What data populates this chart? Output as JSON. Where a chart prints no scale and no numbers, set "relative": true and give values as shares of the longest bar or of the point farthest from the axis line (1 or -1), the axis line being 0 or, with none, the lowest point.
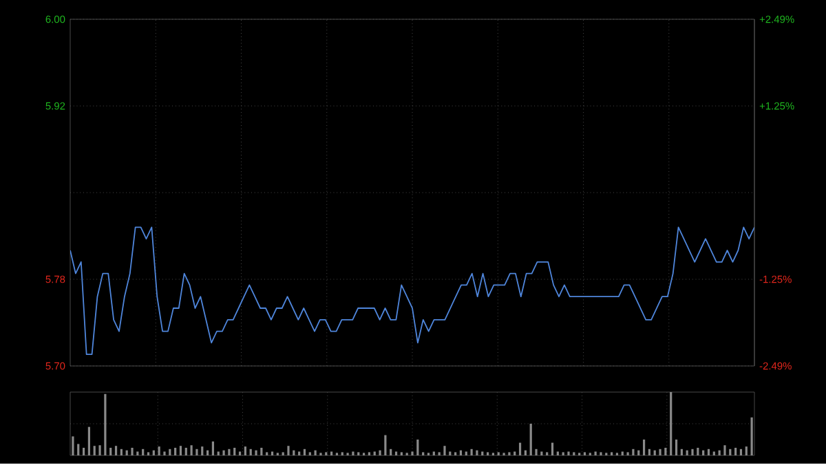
{
  "chart_data": [
    {
      "type": "line",
      "color": "#4f86dc",
      "marker": "none",
      "line_style": "solid",
      "grid": true,
      "tick_labels": "y",
      "categories": [
        null,
        null,
        null,
        null,
        null,
        null,
        null,
        null,
        null,
        null,
        null,
        null,
        null,
        null,
        null,
        null,
        null,
        null,
        null,
        null,
        null,
        null,
        null,
        null,
        null,
        null,
        null,
        null,
        null,
        null,
        null,
        null,
        null,
        null,
        null,
        null,
        null,
        null,
        null,
        null,
        null,
        null,
        null,
        null,
        null,
        null,
        null,
        null,
        null,
        null,
        null,
        null,
        null,
        null,
        null,
        null,
        null,
        null,
        null,
        null,
        null,
        null,
        null,
        null,
        null,
        null,
        null,
        null,
        null,
        null,
        null,
        null,
        null,
        null,
        null,
        null,
        null,
        null,
        null,
        null,
        null,
        null,
        null,
        null,
        null,
        null,
        null,
        null,
        null,
        null,
        null,
        null,
        null,
        null,
        null,
        null,
        null,
        null,
        null,
        null,
        null,
        null,
        null,
        null,
        null,
        null,
        null,
        null,
        null,
        null,
        null,
        null,
        null,
        null,
        null,
        null,
        null,
        null,
        null,
        null,
        null,
        null,
        null,
        null,
        null,
        null,
        null
      ],
      "values": [
        5.8,
        5.78,
        5.79,
        5.71,
        5.71,
        5.76,
        5.78,
        5.78,
        5.74,
        5.73,
        5.76,
        5.78,
        5.82,
        5.82,
        5.81,
        5.82,
        5.76,
        5.73,
        5.73,
        5.75,
        5.75,
        5.78,
        5.77,
        5.75,
        5.76,
        5.74,
        5.72,
        5.73,
        5.73,
        5.74,
        5.74,
        5.75,
        5.76,
        5.77,
        5.76,
        5.75,
        5.75,
        5.74,
        5.75,
        5.75,
        5.76,
        5.75,
        5.74,
        5.75,
        5.74,
        5.73,
        5.74,
        5.74,
        5.73,
        5.73,
        5.74,
        5.74,
        5.74,
        5.75,
        5.75,
        5.75,
        5.75,
        5.74,
        5.75,
        5.74,
        5.74,
        5.77,
        5.76,
        5.75,
        5.72,
        5.74,
        5.73,
        5.74,
        5.74,
        5.74,
        5.75,
        5.76,
        5.77,
        5.77,
        5.78,
        5.76,
        5.78,
        5.76,
        5.77,
        5.77,
        5.77,
        5.78,
        5.78,
        5.76,
        5.78,
        5.78,
        5.79,
        5.79,
        5.79,
        5.77,
        5.76,
        5.77,
        5.76,
        5.76,
        5.76,
        5.76,
        5.76,
        5.76,
        5.76,
        5.76,
        5.76,
        5.76,
        5.77,
        5.77,
        5.76,
        5.75,
        5.74,
        5.74,
        5.75,
        5.76,
        5.76,
        5.78,
        5.82,
        5.81,
        5.8,
        5.79,
        5.8,
        5.81,
        5.8,
        5.79,
        5.79,
        5.8,
        5.79,
        5.8,
        5.82,
        5.81,
        5.82
      ],
      "ylim": [
        5.7,
        6.0
      ],
      "yticks": [
        {
          "value": 5.7,
          "label": "5.70"
        },
        {
          "value": 5.775,
          "label": "5.78"
        },
        {
          "value": 5.85,
          "label": null
        },
        {
          "value": 5.925,
          "label": "5.92"
        },
        {
          "value": 6.0,
          "label": "6.00"
        }
      ],
      "y2lim": [
        -2.49,
        2.49
      ],
      "y2ticks": [
        {
          "value": -2.49,
          "label": "-2.49%"
        },
        {
          "value": -1.245,
          "label": "-1.25%"
        },
        {
          "value": 1.245,
          "label": "+1.25%"
        },
        {
          "value": 2.49,
          "label": "+2.49%"
        }
      ]
    },
    {
      "type": "bar",
      "relative": true,
      "color": "#8a8a8a",
      "grid": true,
      "tick_labels": false,
      "categories": [
        null,
        null,
        null,
        null,
        null,
        null,
        null,
        null,
        null,
        null,
        null,
        null,
        null,
        null,
        null,
        null,
        null,
        null,
        null,
        null,
        null,
        null,
        null,
        null,
        null,
        null,
        null,
        null,
        null,
        null,
        null,
        null,
        null,
        null,
        null,
        null,
        null,
        null,
        null,
        null,
        null,
        null,
        null,
        null,
        null,
        null,
        null,
        null,
        null,
        null,
        null,
        null,
        null,
        null,
        null,
        null,
        null,
        null,
        null,
        null,
        null,
        null,
        null,
        null,
        null,
        null,
        null,
        null,
        null,
        null,
        null,
        null,
        null,
        null,
        null,
        null,
        null,
        null,
        null,
        null,
        null,
        null,
        null,
        null,
        null,
        null,
        null,
        null,
        null,
        null,
        null,
        null,
        null,
        null,
        null,
        null,
        null,
        null,
        null,
        null,
        null,
        null,
        null,
        null,
        null,
        null,
        null,
        null,
        null,
        null,
        null,
        null,
        null,
        null,
        null,
        null,
        null,
        null,
        null,
        null,
        null,
        null,
        null,
        null,
        null,
        null,
        null
      ],
      "values": [
        0.3,
        0.18,
        0.12,
        0.45,
        0.15,
        0.16,
        0.97,
        0.12,
        0.15,
        0.1,
        0.08,
        0.12,
        0.06,
        0.1,
        0.05,
        0.08,
        0.14,
        0.06,
        0.1,
        0.12,
        0.15,
        0.12,
        0.16,
        0.1,
        0.14,
        0.08,
        0.22,
        0.06,
        0.08,
        0.1,
        0.12,
        0.06,
        0.14,
        0.1,
        0.08,
        0.12,
        0.05,
        0.06,
        0.04,
        0.05,
        0.15,
        0.08,
        0.06,
        0.1,
        0.05,
        0.08,
        0.04,
        0.05,
        0.06,
        0.04,
        0.05,
        0.04,
        0.06,
        0.05,
        0.04,
        0.05,
        0.06,
        0.08,
        0.32,
        0.1,
        0.06,
        0.05,
        0.04,
        0.06,
        0.25,
        0.05,
        0.04,
        0.06,
        0.05,
        0.15,
        0.06,
        0.05,
        0.08,
        0.06,
        0.1,
        0.08,
        0.06,
        0.05,
        0.04,
        0.05,
        0.04,
        0.05,
        0.06,
        0.2,
        0.08,
        0.5,
        0.1,
        0.06,
        0.05,
        0.2,
        0.06,
        0.05,
        0.06,
        0.05,
        0.04,
        0.05,
        0.04,
        0.06,
        0.05,
        0.04,
        0.05,
        0.04,
        0.06,
        0.05,
        0.1,
        0.08,
        0.25,
        0.1,
        0.08,
        0.1,
        0.12,
        1.0,
        0.25,
        0.1,
        0.08,
        0.1,
        0.12,
        0.08,
        0.1,
        0.06,
        0.08,
        0.16,
        0.1,
        0.12,
        0.1,
        0.14,
        0.6
      ]
    }
  ]
}
